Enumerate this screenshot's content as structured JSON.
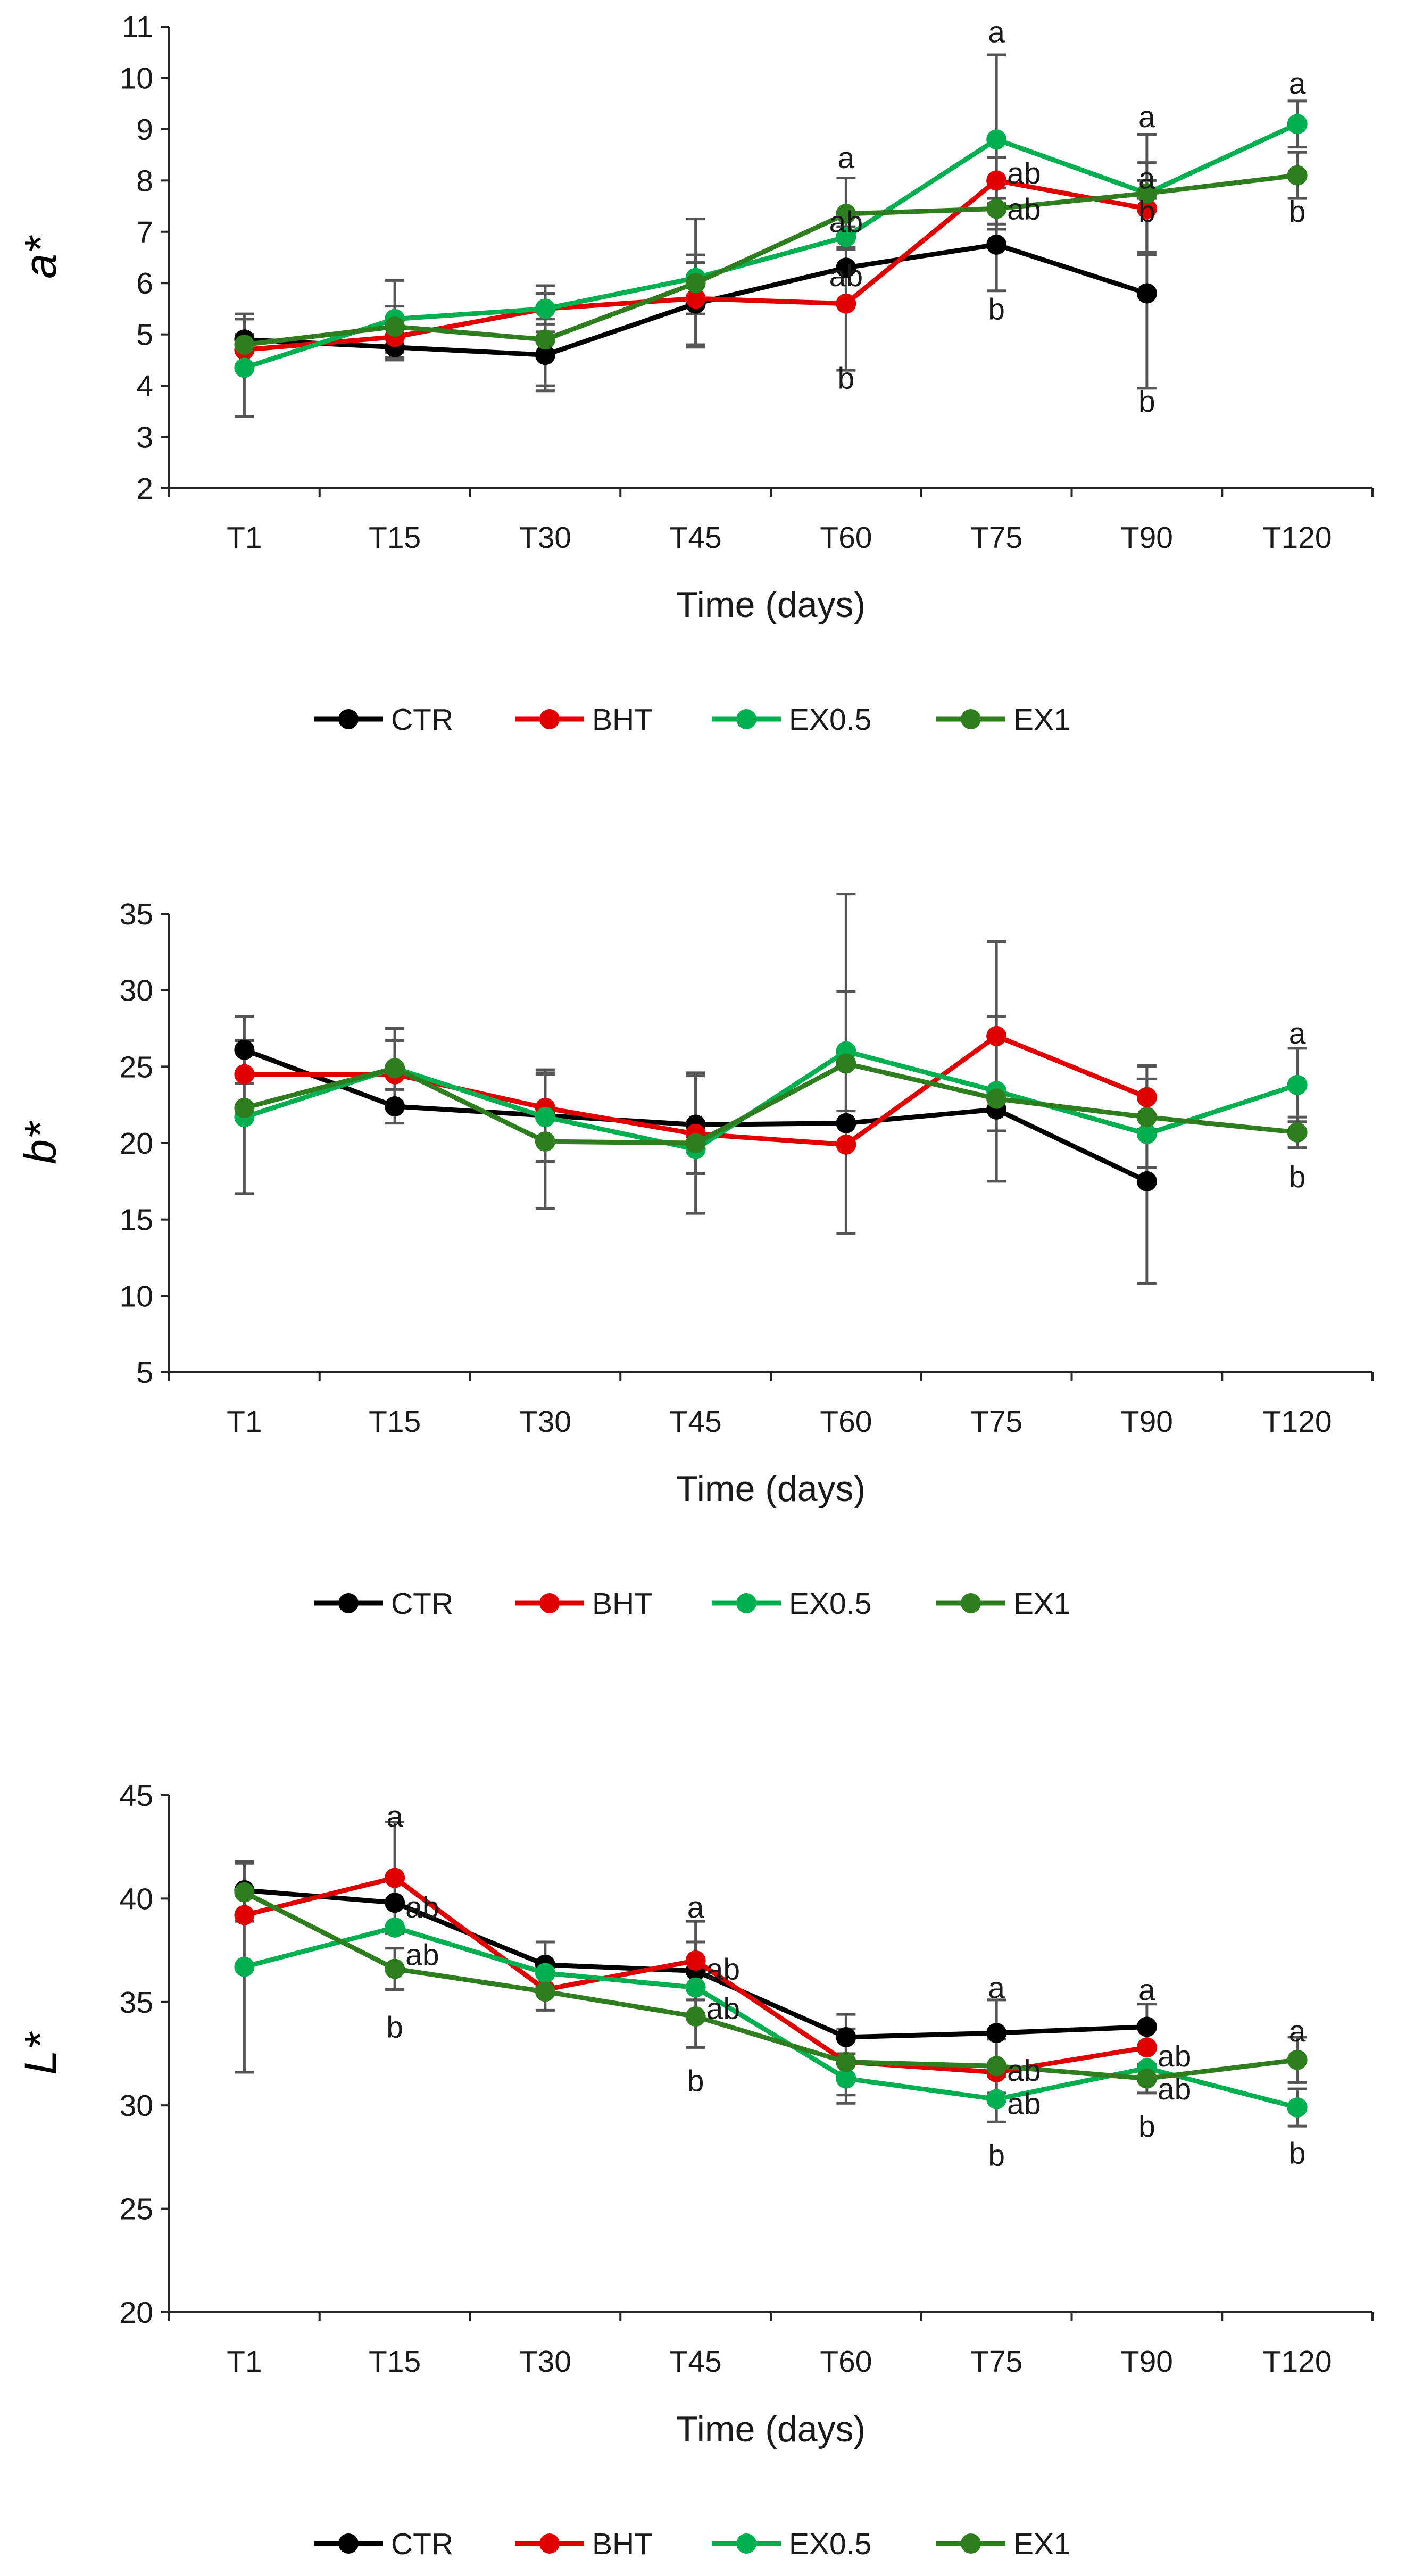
{
  "colors": {
    "CTR": "#000000",
    "BHT": "#e00000",
    "EX0.5": "#00b050",
    "EX1": "#2e7d1e",
    "errorbar": "#555555"
  },
  "chart_data": [
    {
      "type": "line",
      "ylabel": "a*",
      "xlabel": "Time (days)",
      "categories": [
        "T1",
        "T15",
        "T30",
        "T45",
        "T60",
        "T75",
        "T90",
        "T120"
      ],
      "ylim": [
        2,
        11
      ],
      "yticks": [
        "2",
        "3",
        "4",
        "5",
        "6",
        "7",
        "8",
        "9",
        "10",
        "11"
      ],
      "legend": [
        "CTR",
        "BHT",
        "EX0.5",
        "EX1"
      ],
      "series": [
        {
          "name": "CTR",
          "values": [
            4.9,
            4.75,
            4.6,
            5.6,
            6.3,
            6.75,
            5.8,
            null
          ],
          "errors": [
            0.5,
            0.25,
            0.7,
            0.8,
            0.0,
            0.9,
            1.85,
            null
          ]
        },
        {
          "name": "BHT",
          "values": [
            4.7,
            4.95,
            5.5,
            5.7,
            5.6,
            8.0,
            7.45,
            null
          ],
          "errors": [
            0.3,
            0.3,
            0.3,
            0.3,
            1.3,
            0.45,
            0.9,
            null
          ]
        },
        {
          "name": "EX0.5",
          "values": [
            4.35,
            5.3,
            5.5,
            6.1,
            6.9,
            8.8,
            7.75,
            9.1
          ],
          "errors": [
            0.95,
            0.75,
            0.45,
            0.45,
            0.2,
            1.65,
            0.25,
            0.45
          ]
        },
        {
          "name": "EX1",
          "values": [
            4.8,
            5.15,
            4.9,
            6.0,
            7.35,
            7.45,
            7.75,
            8.1
          ],
          "errors": [
            0.5,
            0.4,
            0.9,
            1.25,
            0.7,
            0.4,
            1.15,
            0.45
          ]
        }
      ],
      "annotations": [
        {
          "text": "a",
          "x": "T60",
          "y": 8.45
        },
        {
          "text": "ab",
          "x": "T60",
          "y": 7.2
        },
        {
          "text": "ab",
          "x": "T60",
          "y": 6.15
        },
        {
          "text": "b",
          "x": "T60",
          "y": 4.15
        },
        {
          "text": "a",
          "x": "T75",
          "y": 10.9
        },
        {
          "text": "ab",
          "x": "T75",
          "y": 8.15,
          "offset": "right"
        },
        {
          "text": "ab",
          "x": "T75",
          "y": 7.45,
          "offset": "right"
        },
        {
          "text": "b",
          "x": "T75",
          "y": 5.5
        },
        {
          "text": "a",
          "x": "T90",
          "y": 9.25
        },
        {
          "text": "a",
          "x": "T90",
          "y": 8.05
        },
        {
          "text": "b",
          "x": "T90",
          "y": 7.4
        },
        {
          "text": "b",
          "x": "T90",
          "y": 3.7
        },
        {
          "text": "a",
          "x": "T120",
          "y": 9.9
        },
        {
          "text": "b",
          "x": "T120",
          "y": 7.4
        }
      ]
    },
    {
      "type": "line",
      "ylabel": "b*",
      "xlabel": "Time (days)",
      "categories": [
        "T1",
        "T15",
        "T30",
        "T45",
        "T60",
        "T75",
        "T90",
        "T120"
      ],
      "ylim": [
        5,
        35
      ],
      "yticks": [
        "5",
        "10",
        "15",
        "20",
        "25",
        "30",
        "35"
      ],
      "legend": [
        "CTR",
        "BHT",
        "EX0.5",
        "EX1"
      ],
      "series": [
        {
          "name": "CTR",
          "values": [
            26.1,
            22.4,
            21.8,
            21.2,
            21.3,
            22.2,
            17.5,
            null
          ],
          "errors": [
            2.2,
            1.1,
            3.0,
            3.2,
            0.0,
            0.0,
            6.7,
            null
          ]
        },
        {
          "name": "BHT",
          "values": [
            24.5,
            24.5,
            22.3,
            20.6,
            19.9,
            27.0,
            23.0,
            null
          ],
          "errors": [
            0.0,
            2.2,
            2.3,
            0.0,
            0.0,
            6.2,
            2.1,
            null
          ]
        },
        {
          "name": "EX0.5",
          "values": [
            21.7,
            24.9,
            21.7,
            19.6,
            26.0,
            23.4,
            20.6,
            23.8
          ],
          "errors": [
            5.0,
            0.0,
            0.0,
            0.0,
            3.9,
            0.0,
            0.0,
            2.4
          ]
        },
        {
          "name": "EX1",
          "values": [
            22.3,
            24.9,
            20.1,
            20.0,
            25.2,
            22.9,
            21.7,
            20.7
          ],
          "errors": [
            0.0,
            2.6,
            4.4,
            4.6,
            11.1,
            5.4,
            3.3,
            1.0
          ]
        }
      ],
      "annotations": [
        {
          "text": "a",
          "x": "T120",
          "y": 27.2
        },
        {
          "text": "b",
          "x": "T120",
          "y": 17.8
        }
      ]
    },
    {
      "type": "line",
      "ylabel": "L*",
      "xlabel": "Time (days)",
      "categories": [
        "T1",
        "T15",
        "T30",
        "T45",
        "T60",
        "T75",
        "T90",
        "T120"
      ],
      "ylim": [
        20,
        45
      ],
      "yticks": [
        "20",
        "25",
        "30",
        "35",
        "40",
        "45"
      ],
      "legend": [
        "CTR",
        "BHT",
        "EX0.5",
        "EX1"
      ],
      "series": [
        {
          "name": "CTR",
          "values": [
            40.4,
            39.8,
            36.8,
            36.5,
            33.3,
            33.5,
            33.8,
            null
          ],
          "errors": [
            0.0,
            0.0,
            1.1,
            1.4,
            1.1,
            1.6,
            1.1,
            null
          ]
        },
        {
          "name": "BHT",
          "values": [
            39.2,
            41.0,
            35.6,
            37.0,
            32.1,
            31.6,
            32.8,
            null
          ],
          "errors": [
            0.0,
            2.7,
            0.0,
            1.9,
            0.0,
            0.0,
            0.0,
            null
          ]
        },
        {
          "name": "EX0.5",
          "values": [
            36.7,
            38.6,
            36.4,
            35.7,
            31.3,
            30.3,
            31.8,
            29.9
          ],
          "errors": [
            5.1,
            0.0,
            0.0,
            0.0,
            1.2,
            1.1,
            0.0,
            0.9
          ]
        },
        {
          "name": "EX1",
          "values": [
            40.3,
            36.6,
            35.5,
            34.3,
            32.1,
            31.9,
            31.3,
            32.2
          ],
          "errors": [
            1.4,
            1.0,
            0.9,
            1.5,
            1.6,
            1.3,
            0.7,
            1.1
          ]
        }
      ],
      "annotations": [
        {
          "text": "a",
          "x": "T15",
          "y": 44.0
        },
        {
          "text": "ab",
          "x": "T15",
          "y": 39.6,
          "offset": "right"
        },
        {
          "text": "ab",
          "x": "T15",
          "y": 37.3,
          "offset": "right"
        },
        {
          "text": "b",
          "x": "T15",
          "y": 33.8
        },
        {
          "text": "a",
          "x": "T45",
          "y": 39.6
        },
        {
          "text": "ab",
          "x": "T45",
          "y": 36.6,
          "offset": "right"
        },
        {
          "text": "ab",
          "x": "T45",
          "y": 34.7,
          "offset": "right"
        },
        {
          "text": "b",
          "x": "T45",
          "y": 31.2
        },
        {
          "text": "a",
          "x": "T75",
          "y": 35.7
        },
        {
          "text": "ab",
          "x": "T75",
          "y": 31.7,
          "offset": "right"
        },
        {
          "text": "ab",
          "x": "T75",
          "y": 30.1,
          "offset": "right"
        },
        {
          "text": "b",
          "x": "T75",
          "y": 27.6
        },
        {
          "text": "a",
          "x": "T90",
          "y": 35.6
        },
        {
          "text": "ab",
          "x": "T90",
          "y": 32.4,
          "offset": "right"
        },
        {
          "text": "ab",
          "x": "T90",
          "y": 30.8,
          "offset": "right"
        },
        {
          "text": "b",
          "x": "T90",
          "y": 29.0
        },
        {
          "text": "a",
          "x": "T120",
          "y": 33.6
        },
        {
          "text": "b",
          "x": "T120",
          "y": 27.7
        }
      ]
    }
  ]
}
